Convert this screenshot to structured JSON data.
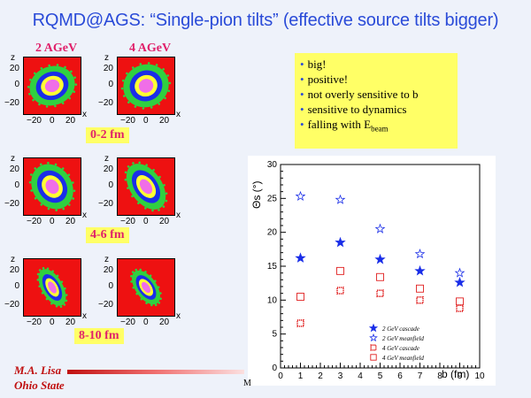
{
  "title": "RQMD@AGS: “Single-pion tilts” (effective source tilts bigger)",
  "energies": [
    "2 AGeV",
    "4 AGeV"
  ],
  "b_labels": [
    "0-2 fm",
    "4-6 fm",
    "8-10 fm"
  ],
  "panel_axes": {
    "z_label": "z",
    "x_label": "x",
    "z_ticks": [
      "20",
      "0",
      "−20"
    ],
    "x_ticks": [
      "−20",
      "0",
      "20"
    ]
  },
  "bullets": [
    "big!",
    "positive!",
    "not overly sensitive to b",
    "sensitive to dynamics",
    "falling with E"
  ],
  "bullet_sub": "beam",
  "footer": {
    "author": "M.A. Lisa",
    "affiliation": "Ohio State",
    "mark": "M"
  },
  "colors": {
    "title": "#2a4bd8",
    "label": "#e0206a",
    "highlight": "#ffff66",
    "footer": "#c01010",
    "blue": "#1a2ee8",
    "red": "#e02020"
  },
  "chart_data": {
    "type": "scatter",
    "xlabel": "b (fm)",
    "ylabel": "Θs (°)",
    "xlim": [
      0,
      10
    ],
    "ylim": [
      0,
      30
    ],
    "x_ticks": [
      "0",
      "1",
      "2",
      "3",
      "4",
      "5",
      "6",
      "7",
      "8",
      "9",
      "10"
    ],
    "y_ticks": [
      "0",
      "5",
      "10",
      "15",
      "20",
      "25",
      "30"
    ],
    "series": [
      {
        "name": "2 GeV cascade",
        "marker": "filled-star",
        "color": "#1a2ee8",
        "x": [
          1,
          3,
          5,
          7,
          9
        ],
        "y": [
          16.2,
          18.5,
          16.0,
          14.3,
          12.6
        ]
      },
      {
        "name": "2 GeV meanfield",
        "marker": "open-star",
        "color": "#1a2ee8",
        "x": [
          1,
          3,
          5,
          7,
          9
        ],
        "y": [
          25.3,
          24.8,
          20.5,
          16.8,
          14.0
        ]
      },
      {
        "name": "4 GeV cascade",
        "marker": "filled-square",
        "color": "#e02020",
        "x": [
          1,
          3,
          5,
          7,
          9
        ],
        "y": [
          6.6,
          11.4,
          11.0,
          10.0,
          8.8
        ]
      },
      {
        "name": "4 GeV meanfield",
        "marker": "open-square",
        "color": "#e02020",
        "x": [
          1,
          3,
          5,
          7,
          9
        ],
        "y": [
          10.5,
          14.3,
          13.4,
          11.7,
          9.8
        ]
      }
    ]
  }
}
